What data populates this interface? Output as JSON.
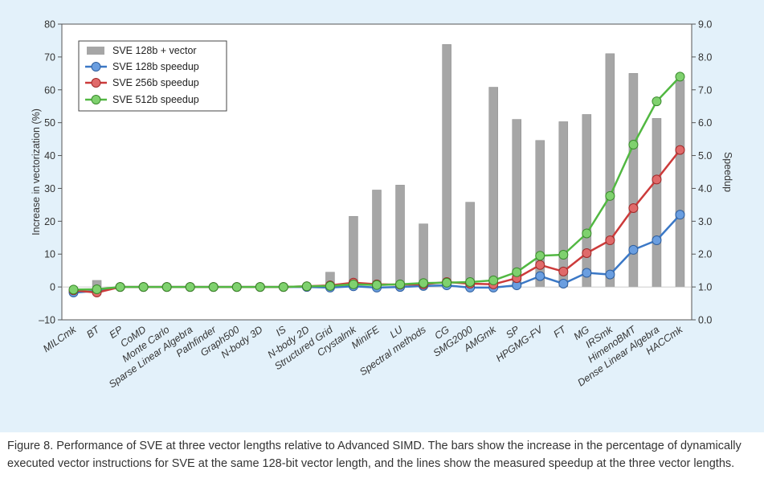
{
  "chart_data": {
    "type": "bar+line",
    "categories": [
      "MILCmk",
      "BT",
      "EP",
      "CoMD",
      "Monte Carlo",
      "Sparse Linear Algebra",
      "Pathfinder",
      "Graph500",
      "N-body 3D",
      "IS",
      "N-body 2D",
      "Structured Grid",
      "Crystalmk",
      "MiniFE",
      "LU",
      "Spectral methods",
      "CG",
      "SMG2000",
      "AMGmk",
      "SP",
      "HPGMG-FV",
      "FT",
      "MG",
      "IRSmk",
      "HimenoBMT",
      "Dense Linear Algebra",
      "HACCmk"
    ],
    "bar_series": {
      "name": "SVE 128b + vector",
      "axis": "left",
      "color": "#a6a6a6",
      "values": [
        0,
        2,
        0,
        0,
        0,
        0,
        0,
        0,
        0,
        0,
        0,
        4.5,
        21.5,
        29.5,
        31,
        19.2,
        73.8,
        25.8,
        60.8,
        51,
        44.6,
        50.3,
        52.5,
        71,
        65,
        51.3,
        63
      ]
    },
    "series": [
      {
        "name": "SVE 128b speedup",
        "axis": "right",
        "color": "#3b78c6",
        "values": [
          0.83,
          0.88,
          1.0,
          1.0,
          1.0,
          1.0,
          1.0,
          1.0,
          1.0,
          1.0,
          1.0,
          0.98,
          1.02,
          0.98,
          1.0,
          1.03,
          1.05,
          0.98,
          0.98,
          1.05,
          1.33,
          1.1,
          1.43,
          1.38,
          2.13,
          2.42,
          3.2
        ]
      },
      {
        "name": "SVE 256b speedup",
        "axis": "right",
        "color": "#cc3b3b",
        "values": [
          0.9,
          0.83,
          1.0,
          1.0,
          1.0,
          1.0,
          1.0,
          1.0,
          1.0,
          1.0,
          1.02,
          1.05,
          1.13,
          1.08,
          1.07,
          1.08,
          1.15,
          1.1,
          1.08,
          1.27,
          1.67,
          1.47,
          2.03,
          2.42,
          3.4,
          4.27,
          5.17
        ]
      },
      {
        "name": "SVE 512b speedup",
        "axis": "right",
        "color": "#52b842",
        "values": [
          0.92,
          0.93,
          1.0,
          1.0,
          1.0,
          1.0,
          1.0,
          1.0,
          1.0,
          1.0,
          1.02,
          1.03,
          1.08,
          1.06,
          1.08,
          1.12,
          1.13,
          1.15,
          1.2,
          1.45,
          1.95,
          1.98,
          2.63,
          3.77,
          5.33,
          6.65,
          7.4
        ]
      }
    ],
    "ylabel": "Increase in vectorization (%)",
    "ylim": [
      -10,
      80
    ],
    "yticks": [
      "–10",
      "0",
      "10",
      "20",
      "30",
      "40",
      "50",
      "60",
      "70",
      "80"
    ],
    "y2label": "Speedup",
    "y2lim": [
      0,
      9
    ],
    "y2ticks": [
      "0.0",
      "1.0",
      "2.0",
      "3.0",
      "4.0",
      "5.0",
      "6.0",
      "7.0",
      "8.0",
      "9.0"
    ],
    "legend_position": "top-left",
    "grid": false
  },
  "caption": "Figure 8.  Performance of SVE at three vector lengths relative to Advanced SIMD. The bars show the increase in the percentage of dynamically executed vector instructions for SVE at the same 128-bit vector length, and the lines show the measured speedup at the three vector lengths."
}
